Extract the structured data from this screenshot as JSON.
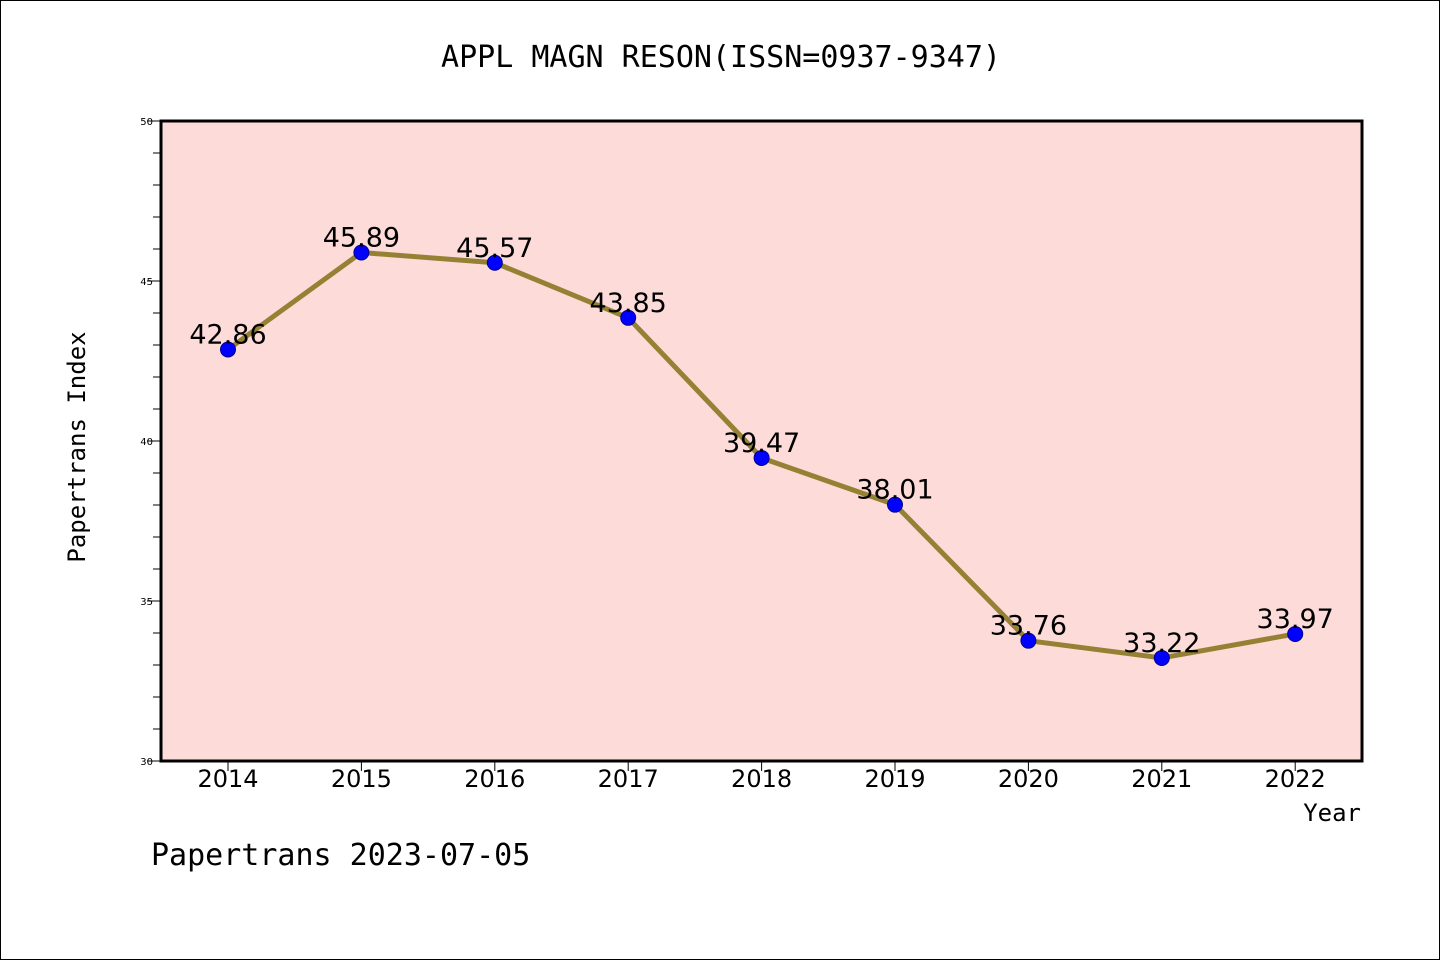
{
  "chart_data": {
    "type": "line",
    "title": "APPL MAGN RESON(ISSN=0937-9347)",
    "xlabel": "Year",
    "ylabel": "Papertrans Index",
    "categories": [
      "2014",
      "2015",
      "2016",
      "2017",
      "2018",
      "2019",
      "2020",
      "2021",
      "2022"
    ],
    "series": [
      {
        "values": [
          42.86,
          45.89,
          45.57,
          43.85,
          39.47,
          38.01,
          33.76,
          33.22,
          33.97
        ],
        "labels": [
          "42.86",
          "45.89",
          "45.57",
          "43.85",
          "39.47",
          "38.01",
          "33.76",
          "33.22",
          "33.97"
        ]
      }
    ],
    "ylim": [
      30,
      50
    ],
    "yticks": [
      "30",
      "35",
      "40",
      "45",
      "50"
    ],
    "grid": false,
    "colors": {
      "plot_background": "#fddbd9",
      "line": "#958133",
      "marker": "#0000ff"
    }
  },
  "footer": {
    "text": "Papertrans 2023-07-05"
  }
}
